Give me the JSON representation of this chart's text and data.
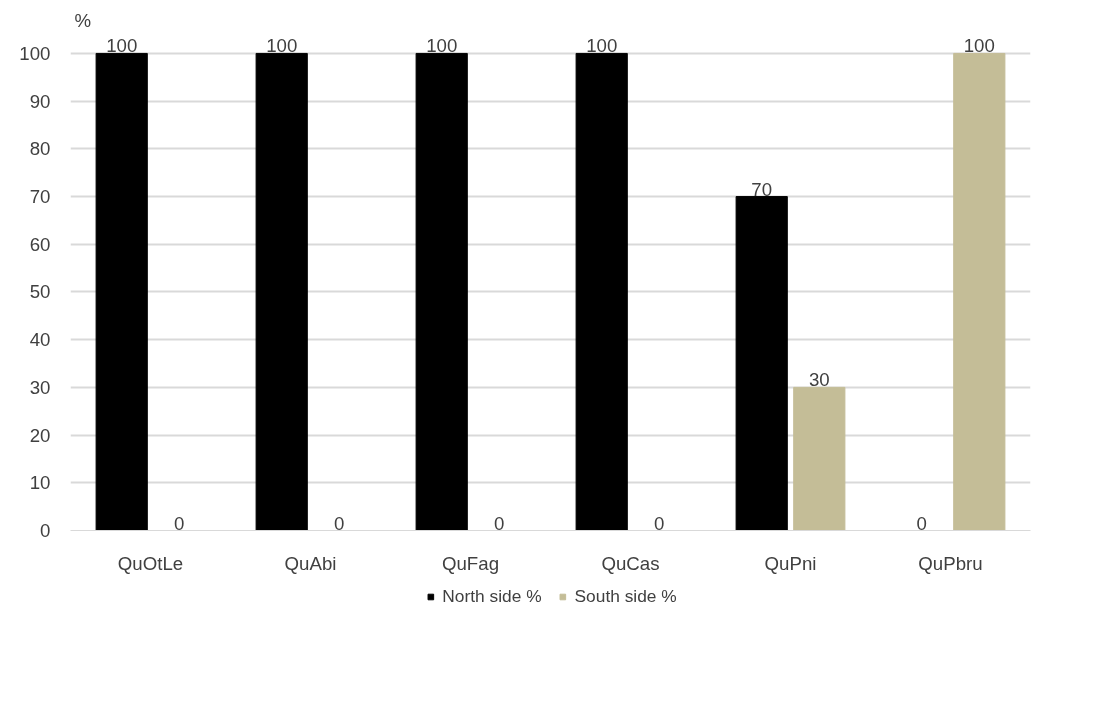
{
  "chart_data": {
    "type": "bar",
    "ylabel": "%",
    "categories": [
      "QuOtLe",
      "QuAbi",
      "QuFag",
      "QuCas",
      "QuPni",
      "QuPbru"
    ],
    "series": [
      {
        "name": "North side %",
        "color": "#000000",
        "values": [
          100,
          100,
          100,
          100,
          70,
          0
        ]
      },
      {
        "name": "South side %",
        "color": "#c4bd97",
        "values": [
          0,
          0,
          0,
          0,
          30,
          100
        ]
      }
    ],
    "ylim": [
      0,
      100
    ],
    "yticks": [
      0,
      10,
      20,
      30,
      40,
      50,
      60,
      70,
      80,
      90,
      100
    ],
    "grid": "y",
    "legend": "bottom",
    "data_labels": true
  }
}
